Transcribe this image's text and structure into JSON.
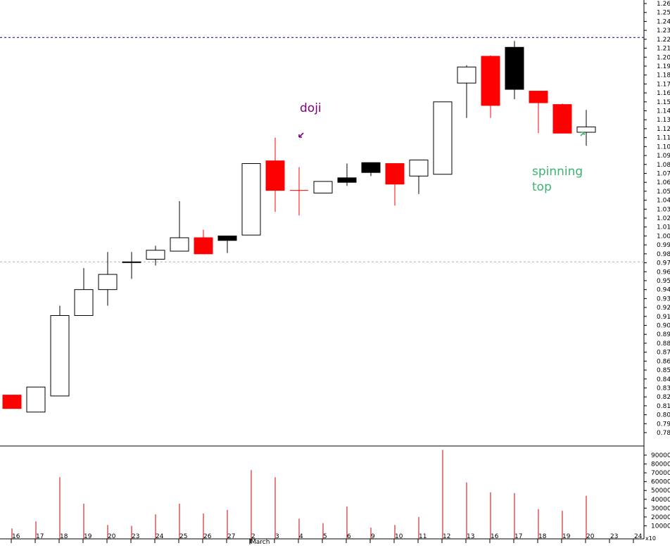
{
  "chart_data": {
    "type": "candlestick",
    "x": [
      "16",
      "17",
      "18",
      "19",
      "20",
      "23",
      "24",
      "25",
      "26",
      "27",
      "2",
      "3",
      "4",
      "5",
      "6",
      "9",
      "10",
      "11",
      "12",
      "13",
      "16",
      "17",
      "18",
      "19",
      "20"
    ],
    "month_label": "March",
    "axis_dates_extra": [
      "23",
      "24"
    ],
    "price_ticks": [
      "0.78",
      "0.79",
      "0.80",
      "0.81",
      "0.82",
      "0.83",
      "0.84",
      "0.85",
      "0.86",
      "0.87",
      "0.88",
      "0.89",
      "0.90",
      "0.91",
      "0.92",
      "0.93",
      "0.94",
      "0.95",
      "0.96",
      "0.97",
      "0.98",
      "0.99",
      "1.00",
      "1.01",
      "1.02",
      "1.03",
      "1.04",
      "1.05",
      "1.06",
      "1.07",
      "1.08",
      "1.09",
      "1.10",
      "1.11",
      "1.12",
      "1.13",
      "1.14",
      "1.15",
      "1.16",
      "1.17",
      "1.18",
      "1.19",
      "1.20",
      "1.21",
      "1.22",
      "1.23",
      "1.24",
      "1.25",
      "1.26"
    ],
    "ylim": [
      0.77,
      1.265
    ],
    "reference_lines": [
      1.222,
      0.971
    ],
    "candles": [
      {
        "open": 0.822,
        "high": 0.822,
        "low": 0.807,
        "close": 0.807,
        "color": "red"
      },
      {
        "open": 0.803,
        "high": 0.831,
        "low": 0.803,
        "close": 0.831,
        "color": "white"
      },
      {
        "open": 0.821,
        "high": 0.922,
        "low": 0.821,
        "close": 0.911,
        "color": "white"
      },
      {
        "open": 0.911,
        "high": 0.964,
        "low": 0.911,
        "close": 0.94,
        "color": "white"
      },
      {
        "open": 0.94,
        "high": 0.982,
        "low": 0.922,
        "close": 0.957,
        "color": "white"
      },
      {
        "open": 0.971,
        "high": 0.982,
        "low": 0.952,
        "close": 0.971,
        "color": "white"
      },
      {
        "open": 0.974,
        "high": 0.989,
        "low": 0.967,
        "close": 0.984,
        "color": "white"
      },
      {
        "open": 0.983,
        "high": 1.039,
        "low": 0.983,
        "close": 0.998,
        "color": "white"
      },
      {
        "open": 0.998,
        "high": 1.007,
        "low": 0.98,
        "close": 0.98,
        "color": "red"
      },
      {
        "open": 0.995,
        "high": 1.0,
        "low": 0.981,
        "close": 1.0,
        "color": "black"
      },
      {
        "open": 1.001,
        "high": 1.081,
        "low": 1.001,
        "close": 1.081,
        "color": "white"
      },
      {
        "open": 1.084,
        "high": 1.11,
        "low": 1.027,
        "close": 1.051,
        "color": "red"
      },
      {
        "open": 1.051,
        "high": 1.077,
        "low": 1.023,
        "close": 1.051,
        "color": "doji"
      },
      {
        "open": 1.048,
        "high": 1.061,
        "low": 1.048,
        "close": 1.061,
        "color": "white"
      },
      {
        "open": 1.06,
        "high": 1.081,
        "low": 1.056,
        "close": 1.065,
        "color": "black"
      },
      {
        "open": 1.071,
        "high": 1.082,
        "low": 1.067,
        "close": 1.082,
        "color": "black"
      },
      {
        "open": 1.081,
        "high": 1.081,
        "low": 1.034,
        "close": 1.058,
        "color": "red"
      },
      {
        "open": 1.067,
        "high": 1.085,
        "low": 1.047,
        "close": 1.085,
        "color": "white"
      },
      {
        "open": 1.069,
        "high": 1.15,
        "low": 1.069,
        "close": 1.15,
        "color": "white"
      },
      {
        "open": 1.171,
        "high": 1.191,
        "low": 1.132,
        "close": 1.189,
        "color": "white"
      },
      {
        "open": 1.201,
        "high": 1.202,
        "low": 1.132,
        "close": 1.146,
        "color": "red"
      },
      {
        "open": 1.164,
        "high": 1.218,
        "low": 1.153,
        "close": 1.211,
        "color": "black"
      },
      {
        "open": 1.162,
        "high": 1.162,
        "low": 1.115,
        "close": 1.149,
        "color": "red"
      },
      {
        "open": 1.147,
        "high": 1.148,
        "low": 1.115,
        "close": 1.115,
        "color": "red"
      },
      {
        "open": 1.116,
        "high": 1.141,
        "low": 1.101,
        "close": 1.122,
        "color": "white"
      }
    ],
    "volume": [
      7000,
      15000,
      65000,
      35000,
      11000,
      10000,
      23000,
      35000,
      24000,
      28000,
      73000,
      65000,
      18000,
      13000,
      32000,
      8000,
      11000,
      20000,
      96000,
      59000,
      48000,
      47000,
      29000,
      27000,
      44000
    ],
    "volume_ticks": [
      "10000",
      "20000",
      "30000",
      "40000",
      "50000",
      "60000",
      "70000",
      "80000",
      "90000"
    ],
    "volume_ylim": [
      0,
      98000
    ],
    "annotations": [
      {
        "text": "doji",
        "color": "#800080"
      },
      {
        "text": "spinning top",
        "lines": [
          "spinning",
          "top"
        ],
        "color": "#3cb371"
      }
    ],
    "corner_label": "x10",
    "colors": {
      "up": "#ffffff",
      "down": "#ff0000",
      "black": "#000000",
      "volume": "#cc0000",
      "annot_doji": "#800080",
      "annot_spin": "#3cb371",
      "dashed_top": "#000080",
      "dashed_mid": "#b0b0b0"
    }
  }
}
